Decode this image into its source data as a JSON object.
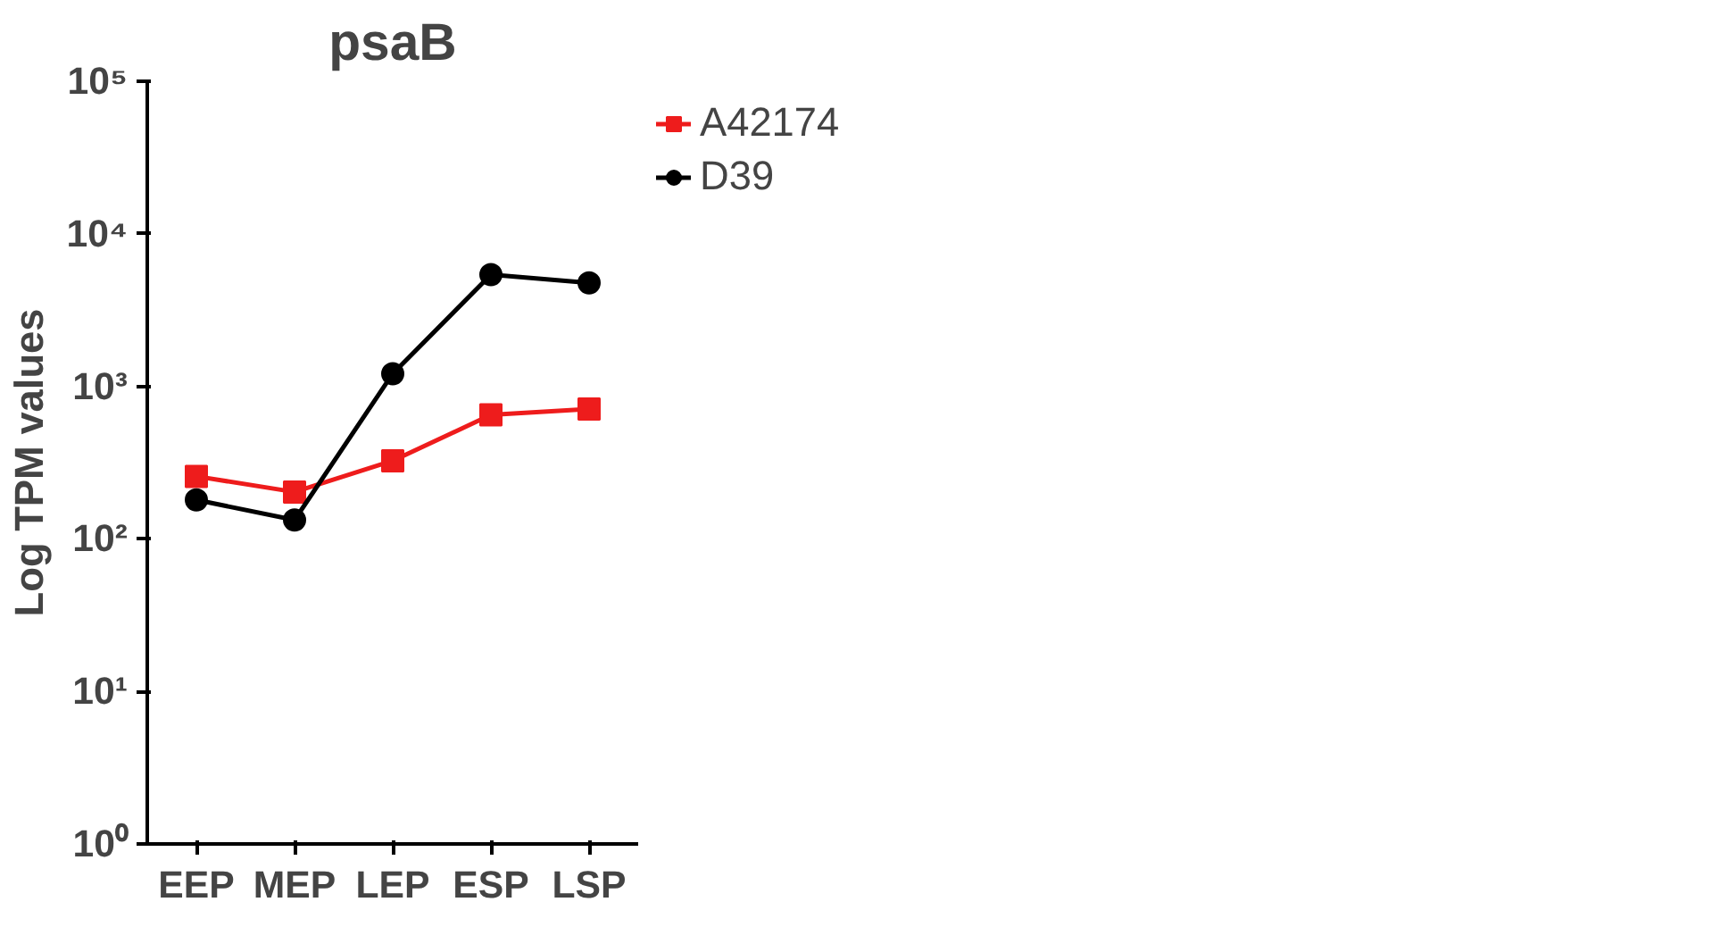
{
  "chart_data": {
    "type": "line",
    "title": "psaB",
    "ylabel": "Log TPM values",
    "categories": [
      "EEP",
      "MEP",
      "LEP",
      "ESP",
      "LSP"
    ],
    "series": [
      {
        "name": "A42174",
        "color": "#ee1c1c",
        "marker": "square",
        "values": [
          257,
          203,
          325,
          650,
          710
        ]
      },
      {
        "name": "D39",
        "color": "#000000",
        "marker": "circle",
        "values": [
          180,
          133,
          1210,
          5400,
          4770
        ]
      }
    ],
    "log": true,
    "ylim": [
      1,
      100000
    ],
    "yticks": [
      {
        "value": 1,
        "label": "10⁰"
      },
      {
        "value": 10,
        "label": "10¹"
      },
      {
        "value": 100,
        "label": "10²"
      },
      {
        "value": 1000,
        "label": "10³"
      },
      {
        "value": 10000,
        "label": "10⁴"
      },
      {
        "value": 100000,
        "label": "10⁵"
      }
    ],
    "grid": false,
    "legend": "top right",
    "line_style": "solid"
  }
}
